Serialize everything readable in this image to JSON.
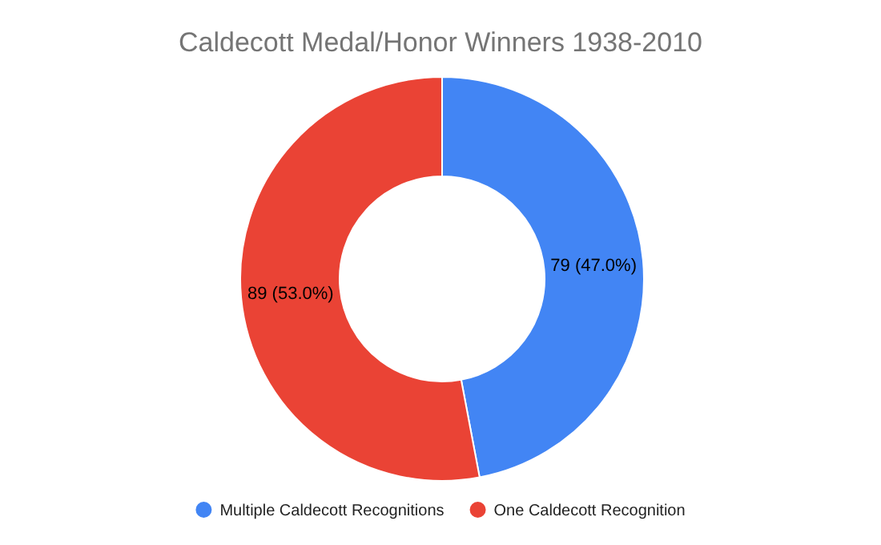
{
  "chart_data": {
    "type": "donut",
    "title": "Caldecott Medal/Honor Winners 1938-2010",
    "categories": [
      "Multiple Caldecott Recognitions",
      "One Caldecott Recognition"
    ],
    "values": [
      79,
      89
    ],
    "colors": [
      "#4285f4",
      "#ea4335"
    ],
    "value_labels": [
      "79 (47.0%)",
      "89 (53.0%)"
    ],
    "legend": "bottom"
  }
}
